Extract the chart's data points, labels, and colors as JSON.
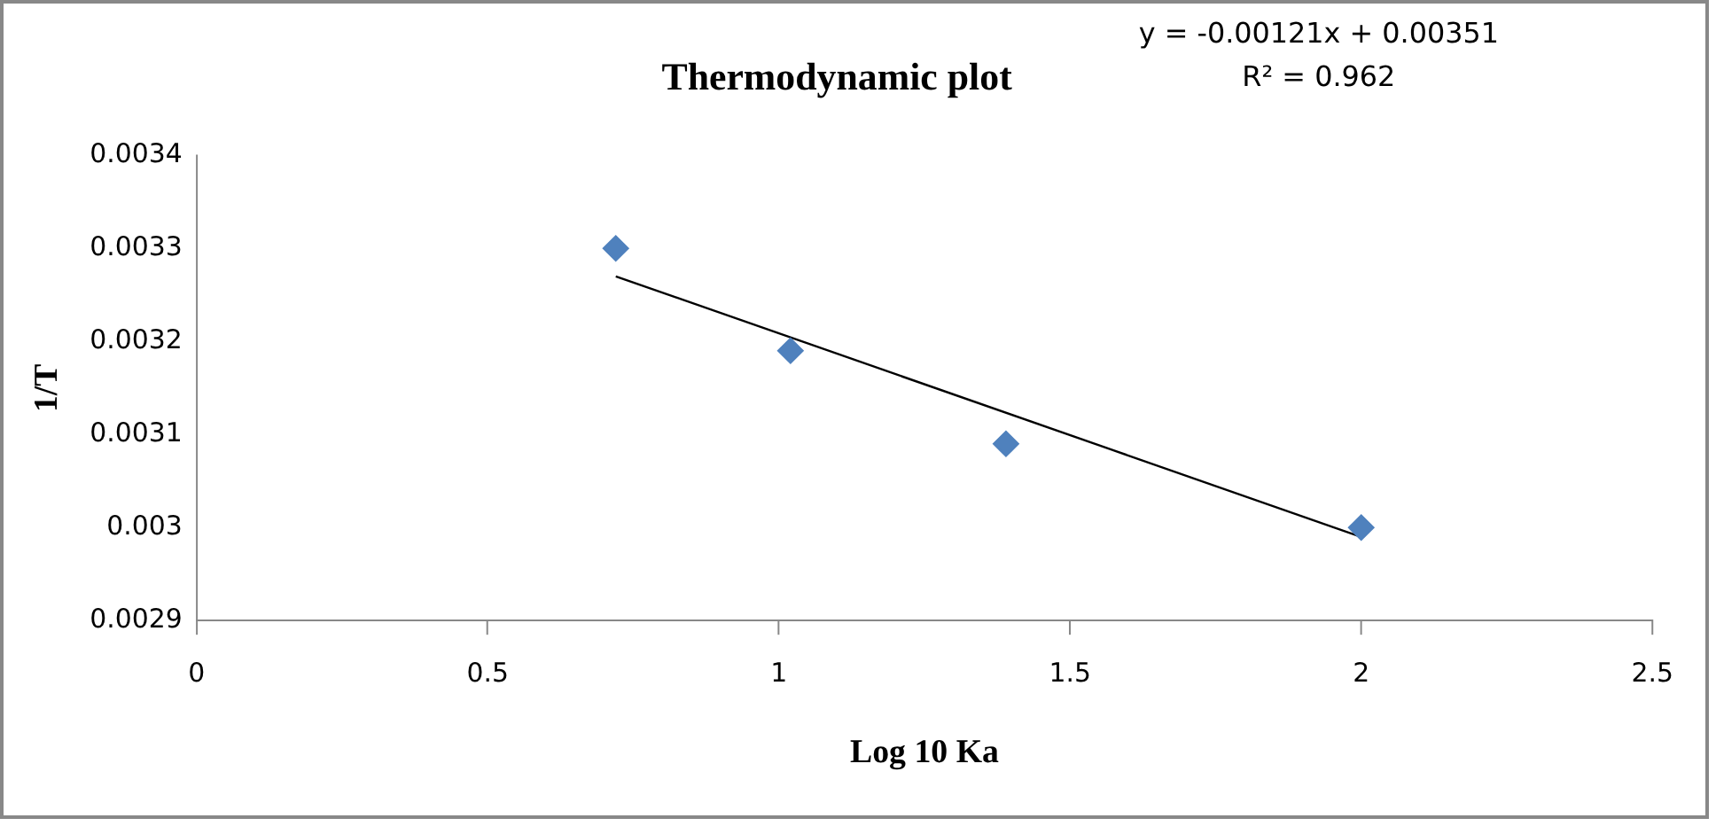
{
  "chart_data": {
    "type": "scatter",
    "title": "Thermodynamic plot",
    "xlabel": "Log 10 Ka",
    "ylabel": "1/T",
    "annotations": [
      "y = -0.00121x + 0.00351",
      "R² = 0.962"
    ],
    "series": [
      {
        "type": "scatter",
        "color": "#4f81bd",
        "x": [
          0.72,
          1.02,
          1.39,
          2.0
        ],
        "values": [
          0.0033,
          0.00319,
          0.00309,
          0.003
        ],
        "marker": "diamond"
      },
      {
        "type": "line",
        "color": "#000000",
        "x": [
          0.72,
          2.0
        ],
        "values": [
          0.00327,
          0.00299
        ],
        "marker": "none"
      }
    ],
    "xlim": [
      0,
      2.5
    ],
    "xticks": [
      0,
      0.5,
      1,
      1.5,
      2,
      2.5
    ],
    "ylim": [
      0.0029,
      0.0034
    ],
    "yticks": [
      0.0029,
      0.003,
      0.0031,
      0.0032,
      0.0033,
      0.0034
    ],
    "grid": false,
    "legend": false
  }
}
